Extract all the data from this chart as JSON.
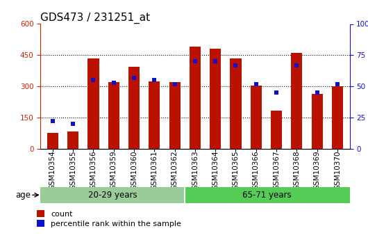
{
  "title": "GDS473 / 231251_at",
  "samples": [
    "GSM10354",
    "GSM10355",
    "GSM10356",
    "GSM10359",
    "GSM10360",
    "GSM10361",
    "GSM10362",
    "GSM10363",
    "GSM10364",
    "GSM10365",
    "GSM10366",
    "GSM10367",
    "GSM10368",
    "GSM10369",
    "GSM10370"
  ],
  "counts": [
    75,
    82,
    435,
    320,
    395,
    325,
    320,
    490,
    480,
    435,
    305,
    185,
    460,
    265,
    300
  ],
  "percentiles": [
    22,
    20,
    55,
    53,
    57,
    55,
    52,
    70,
    70,
    67,
    52,
    45,
    67,
    45,
    52
  ],
  "group1_label": "20-29 years",
  "group2_label": "65-71 years",
  "group1_count": 7,
  "group2_count": 8,
  "age_label": "age",
  "legend_count": "count",
  "legend_pct": "percentile rank within the sample",
  "bar_color_red": "#bb1100",
  "bar_color_blue": "#1111cc",
  "group1_bg": "#99cc99",
  "group2_bg": "#55cc55",
  "ylim_left": [
    0,
    600
  ],
  "ylim_right": [
    0,
    100
  ],
  "yticks_left": [
    0,
    150,
    300,
    450,
    600
  ],
  "yticks_right": [
    0,
    25,
    50,
    75,
    100
  ],
  "ylabel_left_color": "#cc2200",
  "ylabel_right_color": "#1111cc",
  "title_fontsize": 11,
  "tick_fontsize": 7.5,
  "bar_width": 0.55
}
